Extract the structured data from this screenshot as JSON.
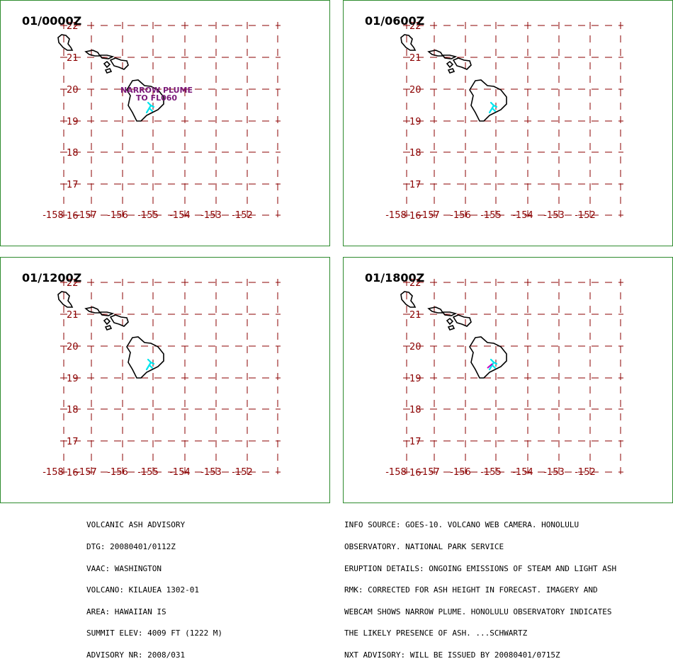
{
  "panels": [
    {
      "title": "01/0000Z",
      "annotation": [
        "NARROW PLUME",
        "TO FL060"
      ]
    },
    {
      "title": "01/0600Z",
      "annotation": []
    },
    {
      "title": "01/1200Z",
      "annotation": []
    },
    {
      "title": "01/1800Z",
      "annotation": []
    }
  ],
  "map": {
    "lat_labels": [
      "22",
      "21",
      "20",
      "19",
      "18",
      "17",
      "16"
    ],
    "lon_labels": [
      "-158",
      "-157",
      "-156",
      "-155",
      "-154",
      "-153",
      "-152"
    ],
    "colors": {
      "grid": "#8b0000",
      "plume": "#00e5ee",
      "annotation": "#7a1a7a",
      "border": "#2e8b2e"
    }
  },
  "advisory_left": [
    "VOLCANIC ASH ADVISORY",
    "DTG: 20080401/0112Z",
    "VAAC: WASHINGTON",
    "VOLCANO: KILAUEA 1302-01",
    "AREA: HAWAIIAN IS",
    "SUMMIT ELEV: 4009 FT (1222 M)",
    "ADVISORY NR: 2008/031"
  ],
  "advisory_right": [
    "INFO SOURCE: GOES-10. VOLCANO WEB CAMERA. HONOLULU",
    "OBSERVATORY. NATIONAL PARK SERVICE",
    "ERUPTION DETAILS: ONGOING EMISSIONS OF STEAM AND LIGHT ASH",
    "RMK: CORRECTED FOR ASH HEIGHT IN FORECAST. IMAGERY AND",
    "WEBCAM SHOWS NARROW PLUME. HONOLULU OBSERVATORY INDICATES",
    "THE LIKELY PRESENCE OF ASH. ...SCHWARTZ",
    "NXT ADVISORY: WILL BE ISSUED BY 20080401/0715Z"
  ]
}
